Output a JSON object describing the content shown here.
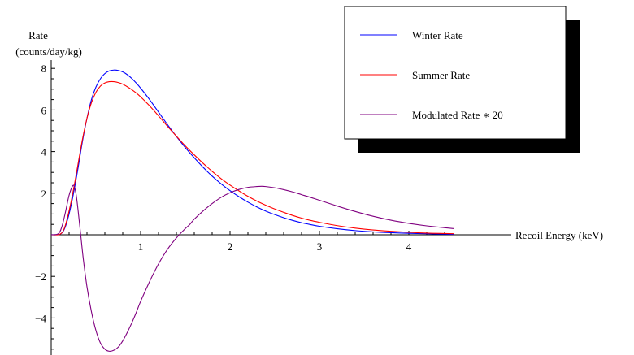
{
  "chart_data": {
    "type": "line",
    "ylabel_line1": "Rate",
    "ylabel_line2": "(counts/day/kg)",
    "xlabel": "Recoil Energy (keV)",
    "xlim": [
      0,
      4.5
    ],
    "ylim": [
      -5.7,
      8.3
    ],
    "xticks": [
      1,
      2,
      3,
      4
    ],
    "yticks": [
      -4,
      -2,
      2,
      4,
      6,
      8
    ],
    "ytick_labels": [
      "−4",
      "−2",
      "2",
      "4",
      "6",
      "8"
    ],
    "grid": false,
    "legend_position": "top-right",
    "series": [
      {
        "name": "Winter Rate",
        "color": "#0000ff",
        "x": [
          0,
          0.1,
          0.15,
          0.2,
          0.25,
          0.3,
          0.35,
          0.4,
          0.45,
          0.5,
          0.55,
          0.6,
          0.65,
          0.7,
          0.75,
          0.8,
          0.85,
          0.9,
          0.95,
          1.0,
          1.1,
          1.2,
          1.3,
          1.4,
          1.5,
          1.6,
          1.7,
          1.8,
          1.9,
          2.0,
          2.1,
          2.2,
          2.3,
          2.4,
          2.5,
          2.6,
          2.7,
          2.8,
          2.9,
          3.0,
          3.2,
          3.4,
          3.6,
          3.8,
          4.0,
          4.2,
          4.4,
          4.5
        ],
        "y": [
          0,
          0.03,
          0.3,
          1.0,
          2.0,
          3.2,
          4.5,
          5.6,
          6.5,
          7.1,
          7.5,
          7.75,
          7.88,
          7.92,
          7.9,
          7.83,
          7.7,
          7.52,
          7.3,
          7.05,
          6.5,
          5.9,
          5.3,
          4.73,
          4.19,
          3.7,
          3.24,
          2.82,
          2.45,
          2.12,
          1.83,
          1.57,
          1.34,
          1.14,
          0.97,
          0.82,
          0.69,
          0.58,
          0.49,
          0.41,
          0.29,
          0.2,
          0.14,
          0.1,
          0.07,
          0.05,
          0.03,
          0.02
        ]
      },
      {
        "name": "Summer Rate",
        "color": "#ff0000",
        "x": [
          0,
          0.1,
          0.15,
          0.2,
          0.25,
          0.3,
          0.35,
          0.4,
          0.45,
          0.5,
          0.55,
          0.6,
          0.65,
          0.7,
          0.75,
          0.8,
          0.85,
          0.9,
          0.95,
          1.0,
          1.1,
          1.2,
          1.3,
          1.4,
          1.5,
          1.6,
          1.7,
          1.8,
          1.9,
          2.0,
          2.1,
          2.2,
          2.3,
          2.4,
          2.5,
          2.6,
          2.7,
          2.8,
          2.9,
          3.0,
          3.2,
          3.4,
          3.6,
          3.8,
          4.0,
          4.2,
          4.4,
          4.5
        ],
        "y": [
          0,
          0.03,
          0.35,
          1.15,
          2.2,
          3.4,
          4.6,
          5.6,
          6.35,
          6.85,
          7.15,
          7.3,
          7.36,
          7.36,
          7.32,
          7.24,
          7.12,
          6.98,
          6.82,
          6.63,
          6.2,
          5.72,
          5.22,
          4.74,
          4.27,
          3.84,
          3.43,
          3.05,
          2.7,
          2.39,
          2.11,
          1.85,
          1.62,
          1.42,
          1.24,
          1.08,
          0.93,
          0.8,
          0.69,
          0.6,
          0.44,
          0.32,
          0.23,
          0.17,
          0.12,
          0.08,
          0.06,
          0.05
        ]
      },
      {
        "name": "Modulated Rate ∗ 20",
        "color": "#800080",
        "x": [
          0,
          0.08,
          0.12,
          0.16,
          0.2,
          0.24,
          0.26,
          0.28,
          0.3,
          0.33,
          0.36,
          0.4,
          0.45,
          0.5,
          0.55,
          0.6,
          0.65,
          0.7,
          0.75,
          0.8,
          0.85,
          0.9,
          0.95,
          1.0,
          1.1,
          1.2,
          1.3,
          1.4,
          1.5,
          1.55,
          1.6,
          1.7,
          1.8,
          1.9,
          2.0,
          2.1,
          2.2,
          2.3,
          2.35,
          2.4,
          2.5,
          2.6,
          2.7,
          2.8,
          2.9,
          3.0,
          3.2,
          3.4,
          3.6,
          3.8,
          4.0,
          4.2,
          4.4,
          4.5
        ],
        "y": [
          0,
          0.05,
          0.4,
          1.1,
          1.9,
          2.35,
          2.3,
          1.9,
          1.2,
          0.0,
          -1.2,
          -2.5,
          -3.7,
          -4.6,
          -5.2,
          -5.5,
          -5.6,
          -5.55,
          -5.4,
          -5.1,
          -4.7,
          -4.25,
          -3.75,
          -3.2,
          -2.25,
          -1.4,
          -0.7,
          -0.15,
          0.3,
          0.5,
          0.75,
          1.15,
          1.5,
          1.8,
          2.02,
          2.18,
          2.28,
          2.32,
          2.33,
          2.32,
          2.26,
          2.17,
          2.06,
          1.93,
          1.8,
          1.66,
          1.38,
          1.12,
          0.89,
          0.7,
          0.55,
          0.43,
          0.34,
          0.3
        ]
      }
    ]
  }
}
